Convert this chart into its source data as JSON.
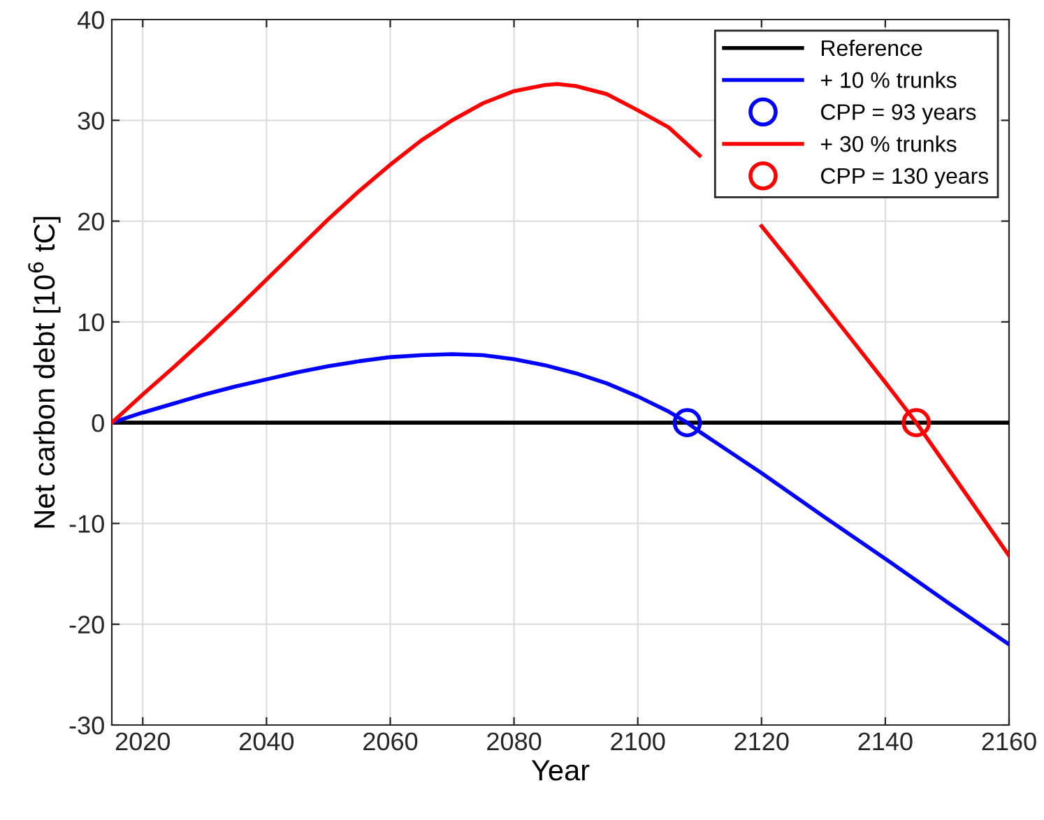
{
  "chart_data": {
    "type": "line",
    "xlabel": "Year",
    "ylabel": "Net carbon debt [10$^{6}$ tC]",
    "xlim": [
      2015,
      2160
    ],
    "xticks": [
      2020,
      2040,
      2060,
      2080,
      2100,
      2120,
      2140,
      2160
    ],
    "ylim": [
      -30,
      40
    ],
    "yticks": [
      -30,
      -20,
      -10,
      0,
      10,
      20,
      30,
      40
    ],
    "grid": true,
    "legend": "top right",
    "series": [
      {
        "name": "Reference",
        "color": "#000000",
        "x": [
          2015,
          2160
        ],
        "values": [
          0,
          0
        ]
      },
      {
        "name": "+ 10 % trunks",
        "color": "#0000ff",
        "x": [
          2015,
          2020,
          2025,
          2030,
          2035,
          2040,
          2045,
          2050,
          2055,
          2060,
          2065,
          2070,
          2075,
          2080,
          2085,
          2090,
          2095,
          2100,
          2105,
          2108,
          2110,
          2120,
          2130,
          2140,
          2150,
          2160
        ],
        "values": [
          0,
          1.0,
          1.9,
          2.8,
          3.6,
          4.3,
          5.0,
          5.6,
          6.1,
          6.5,
          6.7,
          6.8,
          6.7,
          6.3,
          5.7,
          4.9,
          3.9,
          2.6,
          1.1,
          0,
          -0.9,
          -5.0,
          -9.3,
          -13.5,
          -17.8,
          -22
        ]
      },
      {
        "name": "CPP = 93 years",
        "type": "scatter",
        "marker": "circle",
        "color": "#0000ff",
        "x": [
          2108
        ],
        "values": [
          0
        ]
      },
      {
        "name": "+ 30 % trunks",
        "color": "#ff0000",
        "x": [
          2015,
          2020,
          2025,
          2030,
          2035,
          2040,
          2045,
          2050,
          2055,
          2060,
          2065,
          2070,
          2075,
          2080,
          2085,
          2087,
          2090,
          2095,
          2100,
          2105,
          2110,
          2115,
          2120,
          2125,
          2130,
          2135,
          2140,
          2145,
          2150,
          2155,
          2160
        ],
        "values": [
          0,
          2.8,
          5.5,
          8.3,
          11.2,
          14.2,
          17.2,
          20.2,
          23.0,
          25.6,
          28.0,
          30.0,
          31.7,
          32.9,
          33.5,
          33.6,
          33.4,
          32.6,
          31.0,
          29.3,
          26.5,
          null,
          19.5,
          15.7,
          11.8,
          7.9,
          4.0,
          0,
          -4.4,
          -8.8,
          -13.2
        ]
      },
      {
        "name": "CPP = 130 years",
        "type": "scatter",
        "marker": "circle",
        "color": "#ff0000",
        "x": [
          2145
        ],
        "values": [
          0
        ]
      }
    ]
  }
}
